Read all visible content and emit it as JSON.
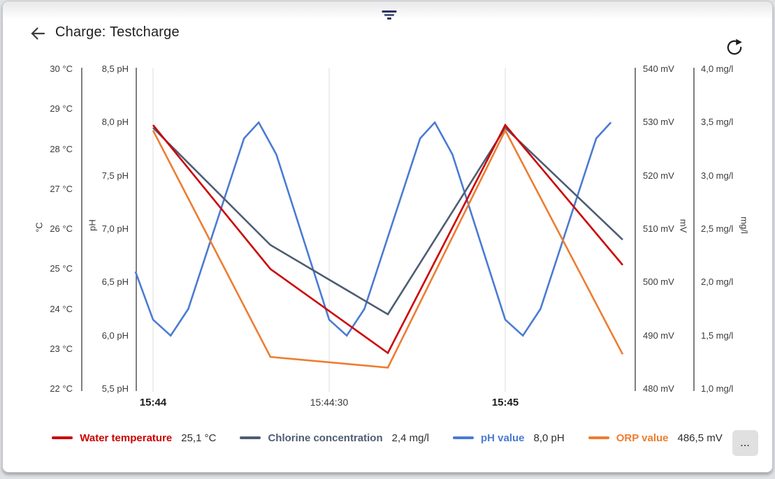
{
  "header": {
    "title": "Charge: Testcharge"
  },
  "toolbar": {
    "more_label": "..."
  },
  "chart_data": {
    "type": "line",
    "title": "",
    "grid": "vertical-only",
    "x_ticks": [
      {
        "t": 0,
        "label": "15:44",
        "bold": true
      },
      {
        "t": 30,
        "label": "15:44:30",
        "bold": false
      },
      {
        "t": 60,
        "label": "15:45",
        "bold": true
      }
    ],
    "x_range_seconds": [
      -3,
      80.5
    ],
    "axes": [
      {
        "id": "temp",
        "title": "°C",
        "side": "left",
        "max": 30,
        "min": 22,
        "tick_step": 1,
        "tick_labels": [
          "30 °C",
          "29 °C",
          "28 °C",
          "27 °C",
          "26 °C",
          "25 °C",
          "24 °C",
          "23 °C",
          "22 °C"
        ]
      },
      {
        "id": "ph",
        "title": "pH",
        "side": "left",
        "max": 8.5,
        "min": 5.5,
        "tick_step": 0.5,
        "tick_labels": [
          "8,5 pH",
          "8,0 pH",
          "7,5 pH",
          "7,0 pH",
          "6,5 pH",
          "6,0 pH",
          "5,5 pH"
        ]
      },
      {
        "id": "mv",
        "title": "mV",
        "side": "right",
        "max": 540,
        "min": 480,
        "tick_step": 10,
        "tick_labels": [
          "540 mV",
          "530 mV",
          "520 mV",
          "510 mV",
          "500 mV",
          "490 mV",
          "480 mV"
        ]
      },
      {
        "id": "mgl",
        "title": "mg/l",
        "side": "right",
        "max": 4.0,
        "min": 1.0,
        "tick_step": 0.5,
        "tick_labels": [
          "4,0 mg/l",
          "3,5 mg/l",
          "3,0 mg/l",
          "2,5 mg/l",
          "2,0 mg/l",
          "1,5 mg/l",
          "1,0 mg/l"
        ]
      }
    ],
    "series": [
      {
        "name": "pH value",
        "axis": "ph",
        "color": "#4a7bd3",
        "points": [
          [
            -3,
            6.6
          ],
          [
            0,
            6.15
          ],
          [
            3,
            6.0
          ],
          [
            6,
            6.25
          ],
          [
            15.5,
            7.85
          ],
          [
            18,
            8.0
          ],
          [
            21,
            7.7
          ],
          [
            30,
            6.15
          ],
          [
            33,
            6.0
          ],
          [
            36,
            6.25
          ],
          [
            45.5,
            7.85
          ],
          [
            48,
            8.0
          ],
          [
            51,
            7.7
          ],
          [
            60,
            6.15
          ],
          [
            63,
            6.0
          ],
          [
            66,
            6.25
          ],
          [
            75.5,
            7.85
          ],
          [
            78,
            8.0
          ]
        ]
      },
      {
        "name": "Chlorine concentration",
        "axis": "mgl",
        "color": "#4e5d73",
        "points": [
          [
            0,
            3.45
          ],
          [
            20,
            2.35
          ],
          [
            40,
            1.7
          ],
          [
            60,
            3.45
          ],
          [
            80,
            2.4
          ]
        ]
      },
      {
        "name": "ORP value",
        "axis": "mv",
        "color": "#ed7d31",
        "points": [
          [
            0,
            528.5
          ],
          [
            20,
            486
          ],
          [
            40,
            484
          ],
          [
            60,
            528.5
          ],
          [
            80,
            486.5
          ]
        ]
      },
      {
        "name": "Water temperature",
        "axis": "temp",
        "color": "#cc0000",
        "points": [
          [
            0,
            28.6
          ],
          [
            20,
            25.0
          ],
          [
            40,
            22.9
          ],
          [
            60,
            28.6
          ],
          [
            80,
            25.1
          ]
        ]
      }
    ]
  },
  "legend": {
    "items": [
      {
        "label": "Water temperature",
        "value": "25,1 °C",
        "color": "#cc0000"
      },
      {
        "label": "Chlorine concentration",
        "value": "2,4 mg/l",
        "color": "#4e5d73"
      },
      {
        "label": "pH value",
        "value": "8,0 pH",
        "color": "#4a7bd3"
      },
      {
        "label": "ORP value",
        "value": "486,5 mV",
        "color": "#ed7d31"
      }
    ]
  }
}
